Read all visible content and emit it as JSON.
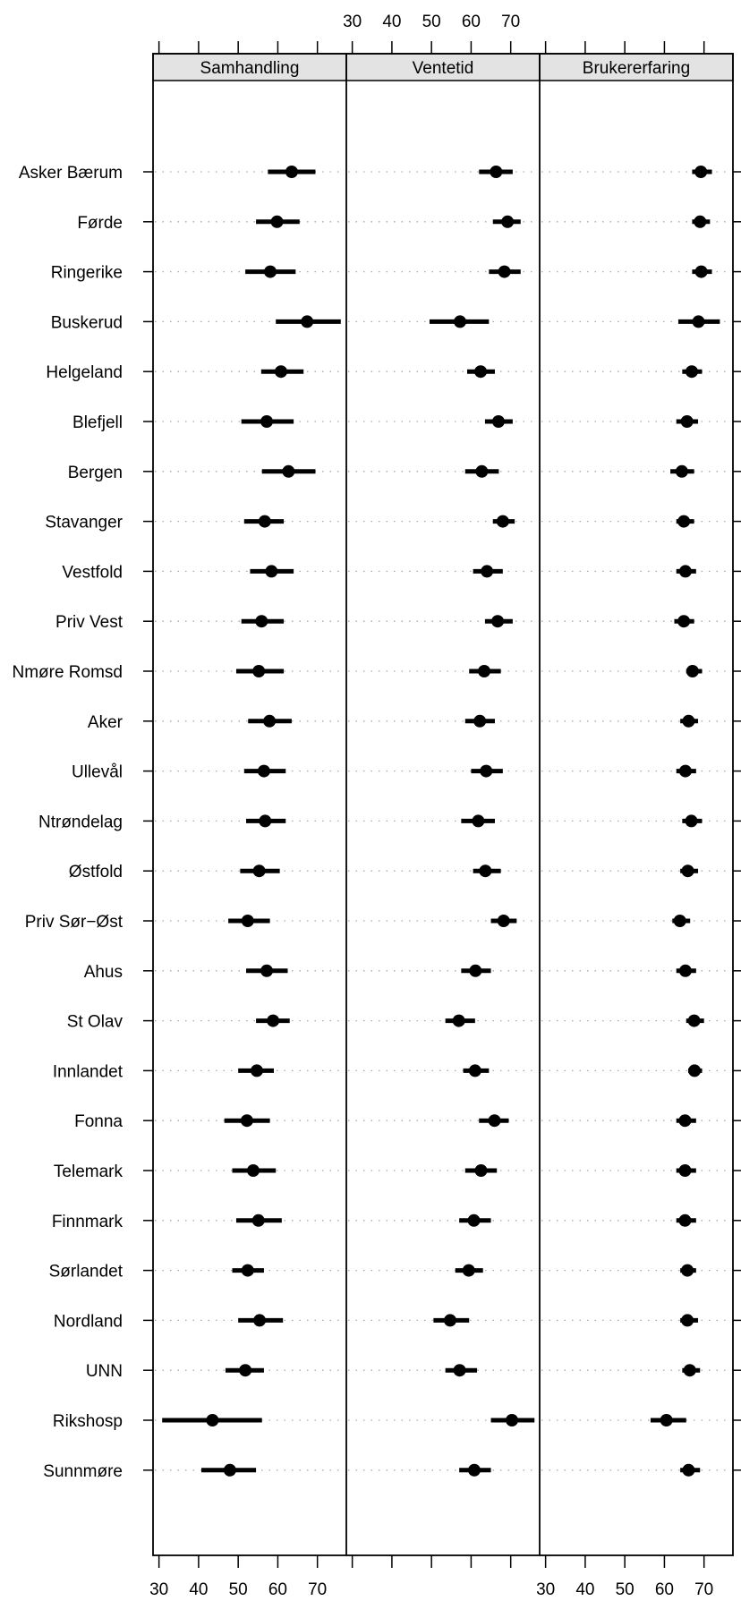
{
  "chart_data": {
    "type": "dotplot",
    "panels": [
      {
        "name": "Samhandling"
      },
      {
        "name": "Ventetid"
      },
      {
        "name": "Brukererfaring"
      }
    ],
    "xlim": [
      28.5,
      77.3
    ],
    "x_ticks": [
      30,
      40,
      50,
      60,
      70
    ],
    "grid": "dotted horizontal reference lines per row",
    "categories": [
      "Asker Bærum",
      "Førde",
      "Ringerike",
      "Buskerud",
      "Helgeland",
      "Blefjell",
      "Bergen",
      "Stavanger",
      "Vestfold",
      "Priv Vest",
      "Nmøre Romsd",
      "Aker",
      "Ullevål",
      "Ntrøndelag",
      "Østfold",
      "Priv Sør−Øst",
      "Ahus",
      "St Olav",
      "Innlandet",
      "Fonna",
      "Telemark",
      "Finnmark",
      "Sørlandet",
      "Nordland",
      "UNN",
      "Rikshosp",
      "Sunnmøre"
    ],
    "series": [
      {
        "name": "Samhandling",
        "values": [
          63.5,
          59.8,
          58.1,
          67.4,
          60.8,
          57.2,
          62.7,
          56.7,
          58.4,
          55.9,
          55.2,
          57.9,
          56.5,
          56.8,
          55.3,
          52.4,
          57.2,
          58.8,
          54.7,
          52.2,
          53.8,
          55.1,
          52.4,
          55.4,
          51.8,
          43.5,
          47.9
        ],
        "ci_low": [
          57.5,
          54.5,
          51.8,
          59.5,
          55.8,
          50.8,
          56.0,
          51.5,
          53.0,
          50.8,
          49.5,
          52.5,
          51.5,
          52.0,
          50.5,
          47.5,
          52.0,
          54.5,
          50.0,
          46.5,
          48.5,
          49.5,
          48.5,
          50.0,
          46.8,
          30.8,
          40.7
        ],
        "ci_high": [
          69.5,
          65.5,
          64.5,
          75.9,
          66.5,
          64.0,
          69.5,
          61.5,
          64.0,
          61.5,
          61.5,
          63.5,
          62.0,
          62.0,
          60.5,
          58.0,
          62.5,
          63.0,
          59.0,
          58.0,
          59.5,
          61.0,
          56.5,
          61.3,
          56.5,
          56.0,
          54.5
        ]
      },
      {
        "name": "Ventetid",
        "values": [
          66.3,
          69.2,
          68.4,
          57.2,
          62.4,
          66.9,
          62.7,
          68.0,
          64.0,
          66.7,
          63.3,
          62.2,
          63.8,
          61.8,
          63.6,
          68.2,
          61.1,
          56.9,
          61.0,
          65.9,
          62.5,
          60.7,
          59.4,
          54.7,
          57.1,
          70.3,
          60.8
        ],
        "ci_low": [
          62.0,
          65.5,
          64.5,
          49.5,
          59.0,
          63.5,
          58.5,
          65.5,
          60.5,
          63.5,
          59.5,
          58.5,
          60.0,
          57.5,
          60.5,
          65.0,
          57.5,
          53.5,
          58.0,
          62.0,
          58.5,
          57.0,
          56.0,
          50.5,
          53.5,
          65.0,
          57.0
        ],
        "ci_high": [
          70.5,
          72.5,
          72.5,
          64.5,
          66.0,
          70.5,
          67.0,
          71.0,
          68.0,
          70.5,
          67.5,
          66.0,
          68.0,
          66.0,
          67.5,
          71.5,
          65.0,
          61.0,
          64.5,
          69.5,
          66.5,
          65.0,
          63.0,
          59.5,
          61.5,
          76.0,
          65.0
        ]
      },
      {
        "name": "Brukererfaring",
        "values": [
          69.2,
          69.0,
          69.3,
          68.6,
          66.9,
          65.7,
          64.4,
          64.9,
          65.3,
          64.9,
          67.1,
          66.1,
          65.3,
          66.8,
          65.9,
          63.9,
          65.3,
          67.5,
          67.6,
          65.2,
          65.2,
          65.2,
          65.8,
          65.8,
          66.4,
          60.5,
          66.1
        ],
        "ci_low": [
          67.0,
          67.0,
          67.0,
          63.5,
          64.5,
          63.0,
          61.5,
          63.0,
          63.0,
          62.5,
          65.5,
          64.0,
          63.0,
          64.5,
          64.0,
          62.0,
          63.0,
          65.5,
          66.0,
          63.0,
          63.0,
          63.0,
          64.0,
          64.0,
          64.5,
          56.5,
          64.0
        ],
        "ci_high": [
          72.0,
          71.5,
          72.0,
          74.0,
          69.5,
          68.5,
          67.5,
          67.5,
          68.0,
          67.5,
          69.5,
          68.5,
          68.0,
          69.5,
          68.5,
          66.5,
          68.0,
          70.0,
          69.5,
          68.0,
          68.0,
          68.0,
          68.0,
          68.5,
          69.0,
          65.5,
          69.0
        ]
      }
    ]
  }
}
